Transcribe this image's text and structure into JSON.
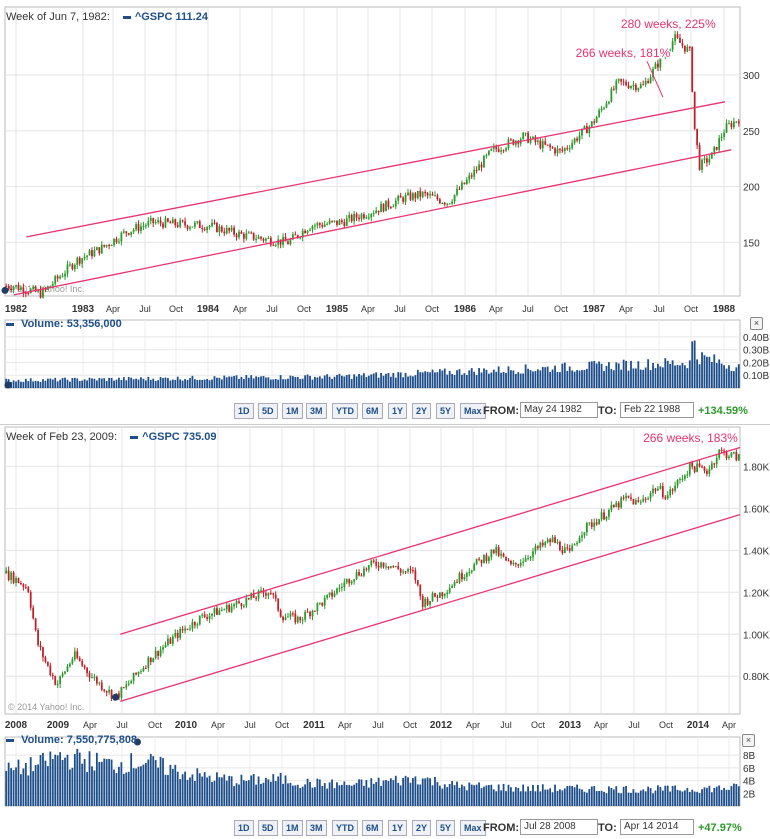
{
  "panels": [
    {
      "header": {
        "week": "Week of Jun 7, 1982:",
        "symbol": "^GSPC",
        "value": "111.24"
      },
      "volume_header": {
        "label": "Volume:",
        "value": "53,356,000"
      },
      "controls": {
        "ranges": [
          "1D",
          "5D",
          "1M",
          "3M",
          "YTD",
          "6M",
          "1Y",
          "2Y",
          "5Y",
          "Max"
        ],
        "from_label": "FROM:",
        "from_value": "May 24 1982",
        "to_label": "TO:",
        "to_value": "Feb 22 1988",
        "change": "+134.59%"
      },
      "chart_data": {
        "type": "candlestick",
        "x_tick_labels": [
          "1982",
          "1983",
          "Apr",
          "Jul",
          "Oct",
          "1984",
          "Apr",
          "Jul",
          "Oct",
          "1985",
          "Apr",
          "Jul",
          "Oct",
          "1986",
          "Apr",
          "Jul",
          "Oct",
          "1987",
          "Apr",
          "Jul",
          "Oct",
          "1988"
        ],
        "y_tick_labels": [
          "150",
          "200",
          "250",
          "300"
        ],
        "y_ticks": [
          150,
          200,
          250,
          300
        ],
        "ylim": [
          102,
          352
        ],
        "xlim": [
          1982.33,
          1988.17
        ],
        "watermark": "© 2014 Yahoo! Inc.",
        "price_path": [
          [
            1982.4,
            111
          ],
          [
            1982.62,
            104
          ],
          [
            1982.9,
            134
          ],
          [
            1983.1,
            145
          ],
          [
            1983.3,
            160
          ],
          [
            1983.5,
            168
          ],
          [
            1983.75,
            166
          ],
          [
            1983.95,
            165
          ],
          [
            1984.2,
            157
          ],
          [
            1984.45,
            152
          ],
          [
            1984.58,
            150
          ],
          [
            1984.75,
            165
          ],
          [
            1985.0,
            168
          ],
          [
            1985.25,
            178
          ],
          [
            1985.5,
            190
          ],
          [
            1985.65,
            193
          ],
          [
            1985.85,
            186
          ],
          [
            1986.0,
            205
          ],
          [
            1986.2,
            232
          ],
          [
            1986.45,
            245
          ],
          [
            1986.6,
            237
          ],
          [
            1986.75,
            231
          ],
          [
            1987.0,
            257
          ],
          [
            1987.2,
            293
          ],
          [
            1987.4,
            290
          ],
          [
            1987.65,
            333
          ],
          [
            1987.78,
            320
          ],
          [
            1987.8,
            260
          ],
          [
            1987.85,
            218
          ],
          [
            1987.95,
            228
          ],
          [
            1988.05,
            252
          ],
          [
            1988.17,
            262
          ]
        ],
        "channel_lines": [
          {
            "x": [
              1982.5,
              1988.05
            ],
            "y": [
              155,
              276
            ]
          },
          {
            "x": [
              1982.4,
              1988.1
            ],
            "y": [
              103,
              233
            ]
          }
        ],
        "annotations": [
          {
            "text": "280 weeks, 225%",
            "x": 1987.6,
            "y": 342
          },
          {
            "text": "266 weeks, 181%",
            "x": 1987.24,
            "y": 316
          }
        ],
        "volume": {
          "y_tick_labels": [
            "0.10B",
            "0.20B",
            "0.30B",
            "0.40B"
          ],
          "y_ticks": [
            0.1,
            0.2,
            0.3,
            0.4
          ],
          "ylim": [
            0,
            0.47
          ],
          "path": [
            [
              1982.33,
              0.06
            ],
            [
              1985.0,
              0.09
            ],
            [
              1986.0,
              0.13
            ],
            [
              1987.0,
              0.17
            ],
            [
              1987.78,
              0.2
            ],
            [
              1987.8,
              0.45
            ],
            [
              1987.83,
              0.25
            ],
            [
              1988.17,
              0.16
            ]
          ]
        }
      }
    },
    {
      "header": {
        "week": "Week of Feb 23, 2009:",
        "symbol": "^GSPC",
        "value": "735.09"
      },
      "volume_header": {
        "label": "Volume:",
        "value": "7,550,775,808"
      },
      "controls": {
        "ranges": [
          "1D",
          "5D",
          "1M",
          "3M",
          "YTD",
          "6M",
          "1Y",
          "2Y",
          "5Y",
          "Max"
        ],
        "from_label": "FROM:",
        "from_value": "Jul 28 2008",
        "to_label": "TO:",
        "to_value": "Apr 14 2014",
        "change": "+47.97%"
      },
      "chart_data": {
        "type": "candlestick",
        "x_tick_labels": [
          "2008",
          "2009",
          "Apr",
          "Jul",
          "Oct",
          "2010",
          "Apr",
          "Jul",
          "Oct",
          "2011",
          "Apr",
          "Jul",
          "Oct",
          "2012",
          "Apr",
          "Jul",
          "Oct",
          "2013",
          "Apr",
          "Jul",
          "Oct",
          "2014",
          "Apr"
        ],
        "y_tick_labels": [
          "0.80K",
          "1.00K",
          "1.20K",
          "1.40K",
          "1.60K",
          "1.80K"
        ],
        "y_ticks": [
          800,
          1000,
          1200,
          1400,
          1600,
          1800
        ],
        "ylim": [
          620,
          1940
        ],
        "xlim": [
          2008.0,
          2014.38
        ],
        "watermark": "© 2014 Yahoo! Inc.",
        "price_path": [
          [
            2008.0,
            1290
          ],
          [
            2008.1,
            1260
          ],
          [
            2008.2,
            1220
          ],
          [
            2008.28,
            960
          ],
          [
            2008.35,
            870
          ],
          [
            2008.45,
            760
          ],
          [
            2008.6,
            900
          ],
          [
            2008.75,
            800
          ],
          [
            2008.85,
            750
          ],
          [
            2008.96,
            700
          ],
          [
            2009.05,
            750
          ],
          [
            2009.25,
            880
          ],
          [
            2009.5,
            1000
          ],
          [
            2009.7,
            1080
          ],
          [
            2009.95,
            1130
          ],
          [
            2010.15,
            1175
          ],
          [
            2010.3,
            1210
          ],
          [
            2010.4,
            1090
          ],
          [
            2010.55,
            1070
          ],
          [
            2010.8,
            1170
          ],
          [
            2011.0,
            1270
          ],
          [
            2011.2,
            1335
          ],
          [
            2011.3,
            1340
          ],
          [
            2011.45,
            1300
          ],
          [
            2011.55,
            1290
          ],
          [
            2011.62,
            1150
          ],
          [
            2011.8,
            1200
          ],
          [
            2012.0,
            1300
          ],
          [
            2012.25,
            1400
          ],
          [
            2012.4,
            1320
          ],
          [
            2012.6,
            1400
          ],
          [
            2012.75,
            1450
          ],
          [
            2012.9,
            1380
          ],
          [
            2013.0,
            1490
          ],
          [
            2013.25,
            1590
          ],
          [
            2013.4,
            1650
          ],
          [
            2013.5,
            1620
          ],
          [
            2013.65,
            1700
          ],
          [
            2013.75,
            1660
          ],
          [
            2013.95,
            1800
          ],
          [
            2014.1,
            1780
          ],
          [
            2014.2,
            1870
          ],
          [
            2014.38,
            1840
          ]
        ],
        "channel_lines": [
          {
            "x": [
              2009.0,
              2014.38
            ],
            "y": [
              1000,
              1890
            ]
          },
          {
            "x": [
              2009.0,
              2014.38
            ],
            "y": [
              680,
              1570
            ]
          }
        ],
        "annotations": [
          {
            "text": "266 weeks, 183%",
            "x": 2013.95,
            "y": 1915
          }
        ],
        "volume": {
          "y_tick_labels": [
            "2B",
            "4B",
            "6B",
            "8B"
          ],
          "y_ticks": [
            2,
            4,
            6,
            8
          ],
          "ylim": [
            0,
            9.6
          ],
          "path": [
            [
              2008.0,
              5.5
            ],
            [
              2008.3,
              6.5
            ],
            [
              2008.45,
              7.8
            ],
            [
              2008.95,
              6.5
            ],
            [
              2009.2,
              7.0
            ],
            [
              2009.6,
              5.0
            ],
            [
              2010.0,
              4.0
            ],
            [
              2010.4,
              4.2
            ],
            [
              2010.6,
              3.6
            ],
            [
              2011.0,
              3.3
            ],
            [
              2011.6,
              4.4
            ],
            [
              2011.9,
              3.2
            ],
            [
              2012.5,
              2.8
            ],
            [
              2013.0,
              2.7
            ],
            [
              2013.8,
              2.6
            ],
            [
              2014.38,
              2.9
            ]
          ]
        }
      }
    }
  ]
}
